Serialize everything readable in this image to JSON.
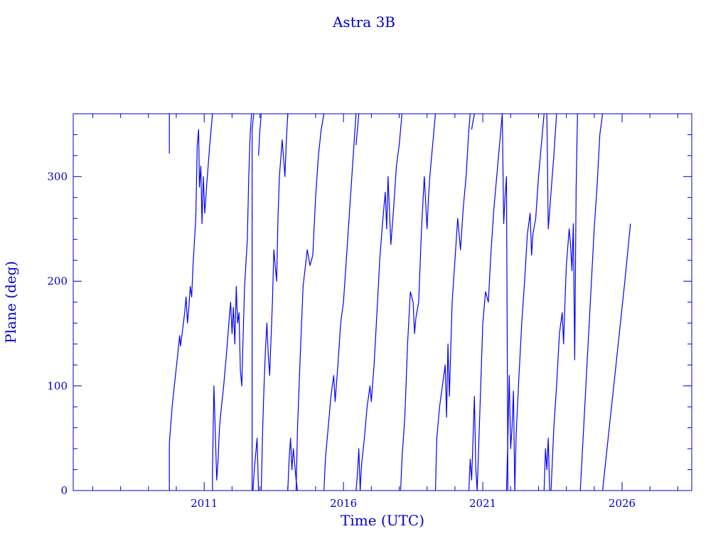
{
  "chart_data": {
    "type": "line",
    "title": "Astra 3B",
    "xlabel": "Time (UTC)",
    "ylabel": "Plane (deg)",
    "xlim": [
      2006.3,
      2028.5
    ],
    "ylim": [
      0,
      360
    ],
    "x_ticks": [
      2011,
      2016,
      2021,
      2026
    ],
    "y_ticks": [
      0,
      100,
      200,
      300
    ],
    "grid": false,
    "color": "#0000ff",
    "series": [
      {
        "values": [
          [
            2009.75,
            360
          ],
          [
            2009.75,
            322
          ]
        ]
      },
      {
        "values": [
          [
            2009.75,
            0
          ],
          [
            2009.75,
            45
          ],
          [
            2009.85,
            80
          ],
          [
            2009.95,
            105
          ],
          [
            2010.05,
            130
          ],
          [
            2010.12,
            148
          ],
          [
            2010.15,
            138
          ],
          [
            2010.2,
            148
          ],
          [
            2010.3,
            170
          ],
          [
            2010.35,
            185
          ],
          [
            2010.4,
            160
          ],
          [
            2010.45,
            175
          ],
          [
            2010.5,
            195
          ],
          [
            2010.55,
            185
          ],
          [
            2010.6,
            215
          ],
          [
            2010.7,
            260
          ],
          [
            2010.75,
            330
          ],
          [
            2010.8,
            345
          ],
          [
            2010.83,
            290
          ],
          [
            2010.88,
            310
          ],
          [
            2010.92,
            255
          ],
          [
            2010.97,
            300
          ],
          [
            2011.02,
            265
          ],
          [
            2011.1,
            295
          ],
          [
            2011.2,
            330
          ],
          [
            2011.3,
            360
          ]
        ]
      },
      {
        "values": [
          [
            2011.3,
            0
          ],
          [
            2011.3,
            20
          ],
          [
            2011.35,
            100
          ],
          [
            2011.4,
            55
          ],
          [
            2011.45,
            10
          ],
          [
            2011.5,
            30
          ],
          [
            2011.55,
            60
          ],
          [
            2011.6,
            75
          ],
          [
            2011.7,
            100
          ],
          [
            2011.8,
            130
          ],
          [
            2011.9,
            165
          ],
          [
            2011.95,
            180
          ],
          [
            2012.0,
            150
          ],
          [
            2012.05,
            175
          ],
          [
            2012.1,
            140
          ],
          [
            2012.15,
            195
          ],
          [
            2012.2,
            160
          ],
          [
            2012.25,
            170
          ],
          [
            2012.3,
            115
          ],
          [
            2012.35,
            100
          ],
          [
            2012.4,
            150
          ],
          [
            2012.45,
            195
          ],
          [
            2012.55,
            240
          ],
          [
            2012.6,
            300
          ],
          [
            2012.65,
            340
          ],
          [
            2012.7,
            360
          ]
        ]
      },
      {
        "values": [
          [
            2012.72,
            0
          ],
          [
            2012.72,
            345
          ],
          [
            2012.78,
            360
          ]
        ]
      },
      {
        "values": [
          [
            2012.75,
            0
          ],
          [
            2012.8,
            20
          ],
          [
            2012.9,
            50
          ],
          [
            2012.95,
            0
          ]
        ]
      },
      {
        "values": [
          [
            2012.95,
            320
          ],
          [
            2013.0,
            345
          ],
          [
            2013.05,
            360
          ]
        ]
      },
      {
        "values": [
          [
            2013.05,
            0
          ],
          [
            2013.1,
            60
          ],
          [
            2013.15,
            100
          ],
          [
            2013.2,
            135
          ],
          [
            2013.25,
            160
          ],
          [
            2013.3,
            130
          ],
          [
            2013.35,
            110
          ],
          [
            2013.4,
            145
          ],
          [
            2013.45,
            180
          ],
          [
            2013.5,
            230
          ],
          [
            2013.55,
            215
          ],
          [
            2013.6,
            200
          ],
          [
            2013.65,
            260
          ],
          [
            2013.7,
            300
          ],
          [
            2013.8,
            335
          ],
          [
            2013.9,
            300
          ],
          [
            2013.95,
            335
          ],
          [
            2014.0,
            360
          ]
        ]
      },
      {
        "values": [
          [
            2014.0,
            0
          ],
          [
            2014.05,
            30
          ],
          [
            2014.1,
            50
          ],
          [
            2014.15,
            20
          ],
          [
            2014.2,
            40
          ],
          [
            2014.3,
            10
          ],
          [
            2014.35,
            0
          ]
        ]
      },
      {
        "values": [
          [
            2014.3,
            0
          ],
          [
            2014.35,
            60
          ],
          [
            2014.45,
            130
          ],
          [
            2014.55,
            195
          ],
          [
            2014.7,
            230
          ],
          [
            2014.8,
            215
          ],
          [
            2014.9,
            225
          ],
          [
            2015.0,
            280
          ],
          [
            2015.1,
            320
          ],
          [
            2015.2,
            345
          ],
          [
            2015.3,
            360
          ]
        ]
      },
      {
        "values": [
          [
            2015.3,
            0
          ],
          [
            2015.35,
            30
          ],
          [
            2015.45,
            60
          ],
          [
            2015.55,
            90
          ],
          [
            2015.65,
            110
          ],
          [
            2015.7,
            85
          ],
          [
            2015.8,
            120
          ],
          [
            2015.9,
            160
          ],
          [
            2016.0,
            180
          ],
          [
            2016.1,
            220
          ],
          [
            2016.2,
            260
          ],
          [
            2016.3,
            300
          ],
          [
            2016.4,
            340
          ],
          [
            2016.45,
            360
          ]
        ]
      },
      {
        "values": [
          [
            2016.45,
            0
          ],
          [
            2016.5,
            15
          ],
          [
            2016.55,
            40
          ],
          [
            2016.6,
            0
          ]
        ]
      },
      {
        "values": [
          [
            2016.45,
            330
          ],
          [
            2016.55,
            360
          ]
        ]
      },
      {
        "values": [
          [
            2016.6,
            0
          ],
          [
            2016.65,
            25
          ],
          [
            2016.75,
            50
          ],
          [
            2016.85,
            80
          ],
          [
            2016.95,
            100
          ],
          [
            2017.0,
            85
          ],
          [
            2017.1,
            120
          ],
          [
            2017.2,
            170
          ],
          [
            2017.3,
            220
          ],
          [
            2017.4,
            255
          ],
          [
            2017.5,
            285
          ],
          [
            2017.55,
            250
          ],
          [
            2017.6,
            300
          ],
          [
            2017.7,
            235
          ],
          [
            2017.8,
            270
          ],
          [
            2017.9,
            310
          ],
          [
            2018.0,
            330
          ],
          [
            2018.1,
            360
          ]
        ]
      },
      {
        "values": [
          [
            2018.05,
            0
          ],
          [
            2018.1,
            30
          ],
          [
            2018.2,
            70
          ],
          [
            2018.3,
            140
          ],
          [
            2018.4,
            190
          ],
          [
            2018.5,
            180
          ],
          [
            2018.55,
            150
          ],
          [
            2018.6,
            165
          ],
          [
            2018.7,
            180
          ],
          [
            2018.8,
            250
          ],
          [
            2018.9,
            300
          ],
          [
            2019.0,
            250
          ],
          [
            2019.05,
            280
          ],
          [
            2019.1,
            300
          ],
          [
            2019.2,
            330
          ],
          [
            2019.3,
            360
          ]
        ]
      },
      {
        "values": [
          [
            2019.3,
            0
          ],
          [
            2019.35,
            50
          ],
          [
            2019.45,
            80
          ],
          [
            2019.55,
            100
          ],
          [
            2019.65,
            120
          ],
          [
            2019.7,
            70
          ],
          [
            2019.75,
            140
          ],
          [
            2019.8,
            90
          ],
          [
            2019.9,
            180
          ],
          [
            2020.0,
            220
          ],
          [
            2020.1,
            260
          ],
          [
            2020.2,
            230
          ],
          [
            2020.3,
            270
          ],
          [
            2020.4,
            300
          ],
          [
            2020.5,
            345
          ],
          [
            2020.55,
            360
          ]
        ]
      },
      {
        "values": [
          [
            2020.5,
            0
          ],
          [
            2020.55,
            30
          ],
          [
            2020.6,
            10
          ],
          [
            2020.65,
            50
          ],
          [
            2020.7,
            90
          ],
          [
            2020.75,
            20
          ],
          [
            2020.8,
            0
          ]
        ]
      },
      {
        "values": [
          [
            2020.6,
            345
          ],
          [
            2020.7,
            360
          ]
        ]
      },
      {
        "values": [
          [
            2020.8,
            0
          ],
          [
            2020.85,
            40
          ],
          [
            2020.9,
            80
          ],
          [
            2021.0,
            160
          ],
          [
            2021.1,
            190
          ],
          [
            2021.2,
            180
          ],
          [
            2021.3,
            230
          ],
          [
            2021.4,
            270
          ],
          [
            2021.5,
            300
          ],
          [
            2021.6,
            330
          ],
          [
            2021.7,
            360
          ]
        ]
      },
      {
        "values": [
          [
            2021.7,
            360
          ],
          [
            2021.75,
            255
          ],
          [
            2021.8,
            280
          ],
          [
            2021.85,
            300
          ],
          [
            2021.9,
            0
          ]
        ]
      },
      {
        "values": [
          [
            2021.85,
            0
          ],
          [
            2021.9,
            50
          ],
          [
            2021.95,
            110
          ],
          [
            2022.0,
            40
          ],
          [
            2022.05,
            60
          ],
          [
            2022.1,
            95
          ],
          [
            2022.15,
            0
          ]
        ]
      },
      {
        "values": [
          [
            2022.15,
            0
          ],
          [
            2022.2,
            55
          ],
          [
            2022.3,
            110
          ],
          [
            2022.4,
            160
          ],
          [
            2022.5,
            200
          ],
          [
            2022.6,
            245
          ],
          [
            2022.7,
            265
          ],
          [
            2022.75,
            225
          ],
          [
            2022.8,
            245
          ],
          [
            2022.9,
            260
          ],
          [
            2023.0,
            300
          ],
          [
            2023.1,
            330
          ],
          [
            2023.2,
            360
          ]
        ]
      },
      {
        "values": [
          [
            2023.2,
            0
          ],
          [
            2023.25,
            40
          ],
          [
            2023.3,
            20
          ],
          [
            2023.35,
            50
          ],
          [
            2023.4,
            0
          ]
        ]
      },
      {
        "values": [
          [
            2023.3,
            360
          ],
          [
            2023.35,
            250
          ],
          [
            2023.45,
            285
          ],
          [
            2023.55,
            320
          ],
          [
            2023.65,
            360
          ]
        ]
      },
      {
        "values": [
          [
            2023.45,
            0
          ],
          [
            2023.55,
            60
          ],
          [
            2023.65,
            100
          ],
          [
            2023.75,
            150
          ],
          [
            2023.85,
            170
          ],
          [
            2023.9,
            140
          ],
          [
            2023.95,
            180
          ],
          [
            2024.0,
            215
          ],
          [
            2024.1,
            250
          ],
          [
            2024.15,
            235
          ],
          [
            2024.2,
            210
          ],
          [
            2024.25,
            255
          ],
          [
            2024.3,
            125
          ],
          [
            2024.35,
            290
          ],
          [
            2024.4,
            360
          ]
        ]
      },
      {
        "values": [
          [
            2024.5,
            0
          ],
          [
            2024.6,
            50
          ],
          [
            2024.7,
            100
          ],
          [
            2024.8,
            150
          ],
          [
            2024.9,
            200
          ],
          [
            2025.0,
            250
          ],
          [
            2025.05,
            270
          ],
          [
            2025.1,
            290
          ],
          [
            2025.2,
            340
          ],
          [
            2025.3,
            360
          ]
        ]
      },
      {
        "values": [
          [
            2025.3,
            0
          ],
          [
            2025.5,
            50
          ],
          [
            2025.7,
            100
          ],
          [
            2025.9,
            150
          ],
          [
            2026.1,
            200
          ],
          [
            2026.3,
            255
          ]
        ]
      }
    ]
  }
}
